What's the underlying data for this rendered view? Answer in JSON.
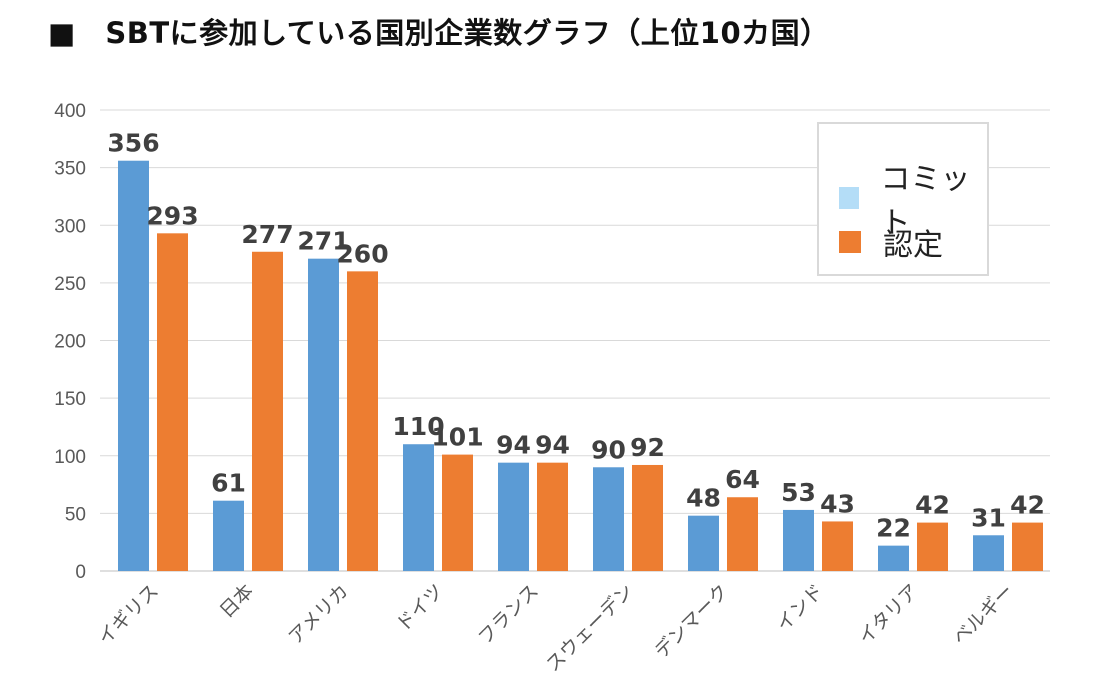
{
  "title": "■　SBTに参加している国別企業数グラフ（上位10カ国）",
  "colors": {
    "commit_bar": "#5b9bd5",
    "commit_legend": "#b4ddf7",
    "certified": "#ed7d31"
  },
  "chart_data": {
    "type": "bar",
    "title": "SBTに参加している国別企業数グラフ（上位10カ国）",
    "categories": [
      "イギリス",
      "日本",
      "アメリカ",
      "ドイツ",
      "フランス",
      "スウェーデン",
      "デンマーク",
      "インド",
      "イタリア",
      "ベルギー"
    ],
    "series": [
      {
        "name": "コミット",
        "values": [
          356,
          61,
          271,
          110,
          94,
          90,
          48,
          53,
          22,
          31
        ]
      },
      {
        "name": "認定",
        "values": [
          293,
          277,
          260,
          101,
          94,
          92,
          64,
          43,
          42,
          42
        ]
      }
    ],
    "ylim": [
      0,
      400
    ],
    "yticks": [
      "0",
      "50",
      "100",
      "150",
      "200",
      "250",
      "300",
      "350",
      "400"
    ],
    "grid": true,
    "legend_position": "top-right",
    "xlabel": "",
    "ylabel": ""
  }
}
